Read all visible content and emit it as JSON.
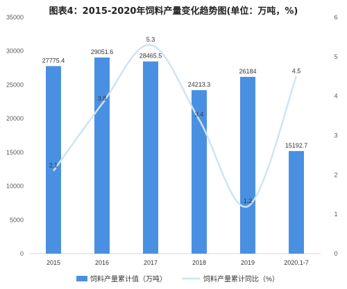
{
  "chart_data": {
    "type": "bar+line",
    "title": "图表4：2015-2020年饲料产量变化趋势图(单位：万吨，%)",
    "categories": [
      "2015",
      "2016",
      "2017",
      "2018",
      "2019",
      "2020.1-7"
    ],
    "series": [
      {
        "name": "饲料产量累计值（万吨）",
        "type": "bar",
        "axis": "left",
        "color": "#4a90e2",
        "values": [
          27775.4,
          29051.6,
          28465.5,
          24213.3,
          26184,
          15192.7
        ],
        "labels": [
          "27775.4",
          "29051.6",
          "28465.5",
          "24213.3",
          "26184",
          "15192.7"
        ]
      },
      {
        "name": "饲料产量累计同比（%）",
        "type": "line",
        "axis": "right",
        "color": "#cfe3f5",
        "values": [
          2.1,
          3.8,
          5.3,
          3.4,
          1.2,
          4.5
        ],
        "labels": [
          "2.1",
          "3.8",
          "5.3",
          "3.4",
          "1.2",
          "4.5"
        ]
      }
    ],
    "y_left": {
      "min": 0,
      "max": 35000,
      "ticks": [
        "0",
        "5000",
        "10000",
        "15000",
        "20000",
        "25000",
        "30000",
        "35000"
      ]
    },
    "y_right": {
      "min": 0,
      "max": 6,
      "ticks": [
        "0",
        "1",
        "2",
        "3",
        "4",
        "5",
        "6"
      ]
    },
    "grid": false,
    "legend": "bottom"
  }
}
